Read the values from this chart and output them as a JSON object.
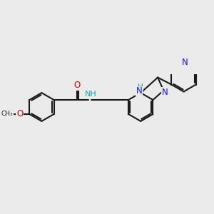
{
  "bg_color": "#ebebeb",
  "bond_color": "#1a1a1a",
  "bond_width": 1.5,
  "dbo": 0.055,
  "atom_colors": {
    "N": "#1414ff",
    "O": "#cc0000",
    "NH": "#17a0a0",
    "C": "#1a1a1a"
  },
  "fontsize": 8.5
}
